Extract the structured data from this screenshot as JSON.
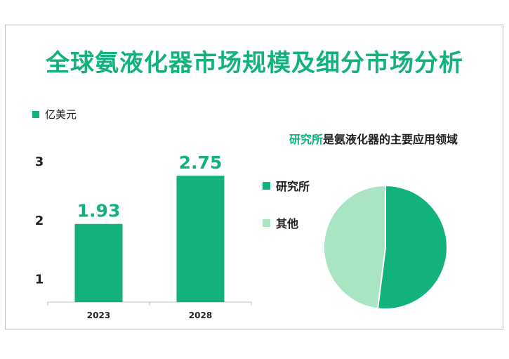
{
  "title": "全球氨液化器市场规模及细分市场分析",
  "chart_data": [
    {
      "type": "bar",
      "legend": "亿美元",
      "categories": [
        "2023",
        "2028"
      ],
      "values": [
        1.93,
        2.75
      ],
      "data_labels": [
        "1.93",
        "2.75"
      ],
      "y_ticks": [
        "1",
        "2",
        "3"
      ],
      "ylim": [
        0.6,
        3.23
      ],
      "color": "#13b27c"
    },
    {
      "type": "pie",
      "title_highlight": "研究所",
      "title_rest": "是氨液化器的主要应用领域",
      "labels": [
        "研究所",
        "其他"
      ],
      "values": [
        52,
        48
      ],
      "colors": [
        "#13b27c",
        "#a9e4c3"
      ]
    }
  ]
}
